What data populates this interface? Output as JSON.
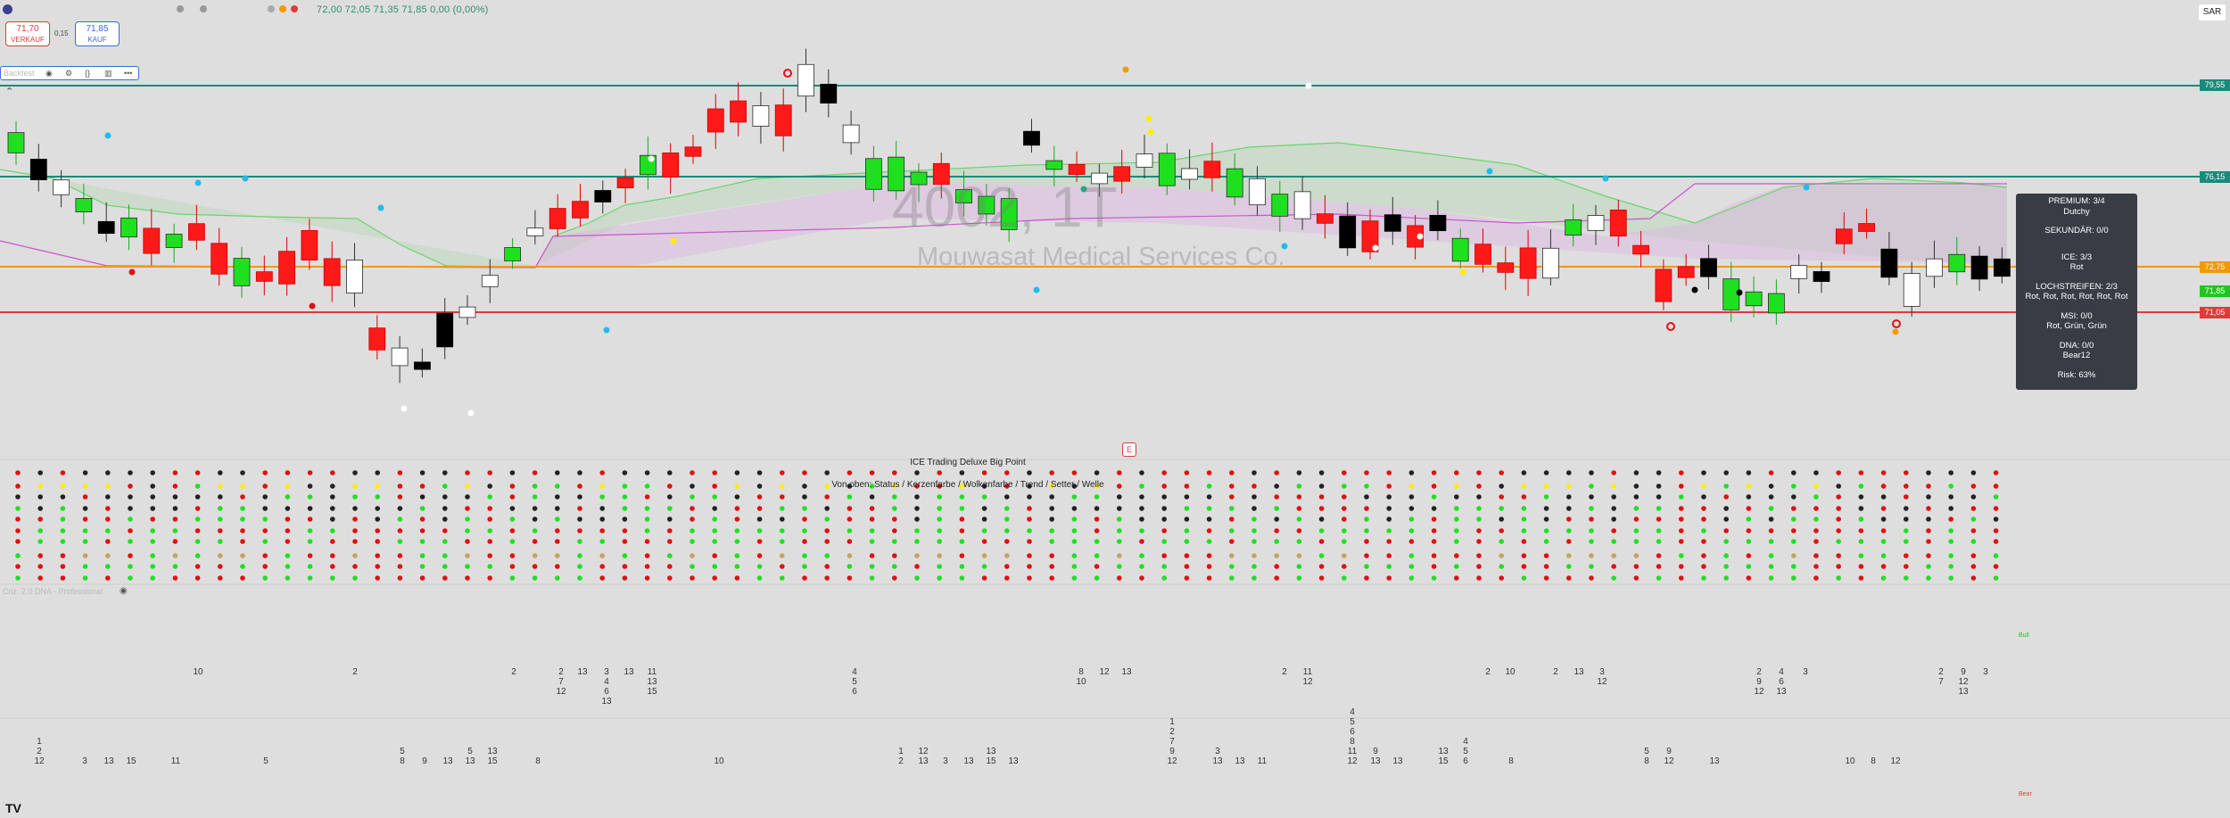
{
  "toolbar": {
    "ohlc": "72,00   72,05   71,35   71,85   0,00 (0,00%)",
    "sell_price": "71,70",
    "sell_label": "VERKAUF",
    "buy_price": "71,85",
    "buy_label": "KAUF",
    "spread": "0,15",
    "indicator_name": "Backtest",
    "sar_label": "SAR"
  },
  "watermark": {
    "symbol": "4002, 1T",
    "name": "Mouwasat Medical Services Co."
  },
  "price_labels": [
    {
      "text": "79,55",
      "color": "#1a8a7a"
    },
    {
      "text": "76,15",
      "color": "#1a8a7a"
    },
    {
      "text": "72,75",
      "color": "#f09a00"
    },
    {
      "text": "71,85",
      "color": "#22c422"
    },
    {
      "text": "71,05",
      "color": "#e03a3a"
    }
  ],
  "infobox": {
    "premium": "PREMIUM: 3/4",
    "premium_sub": "Dutchy",
    "sekundar": "SEKUNDÄR: 0/0",
    "ice": "ICE: 3/3",
    "ice_sub": "Rot",
    "lochstreifen": "LOCHSTREIFEN: 2/3",
    "lochstreifen_sub": "Rot, Rot, Rot, Rot, Rot, Rot",
    "msi": "MSI: 0/0",
    "msi_sub": "Rot, Grün, Grün",
    "dna": "DNA: 0/0",
    "dna_sub": "Bear12",
    "risk": "Risk: 63%"
  },
  "indicator_panel": {
    "title": "ICE Trading Deluxe Big Point",
    "subtitle": "Von oben: Status / Kerzenfarbe / Wolkenfarbe / Trend / Setter / Welle",
    "badge": "E"
  },
  "dna_panel": {
    "label": "Criz. 2.0 DNA - Professional",
    "bull_label": "Bull",
    "bear_label": "Bear"
  },
  "colors": {
    "bull": "#1fe01f",
    "bear": "#ff1a1a",
    "line_teal": "#1a8a7a",
    "line_orange": "#f09a00",
    "line_red": "#e03a3a"
  }
}
